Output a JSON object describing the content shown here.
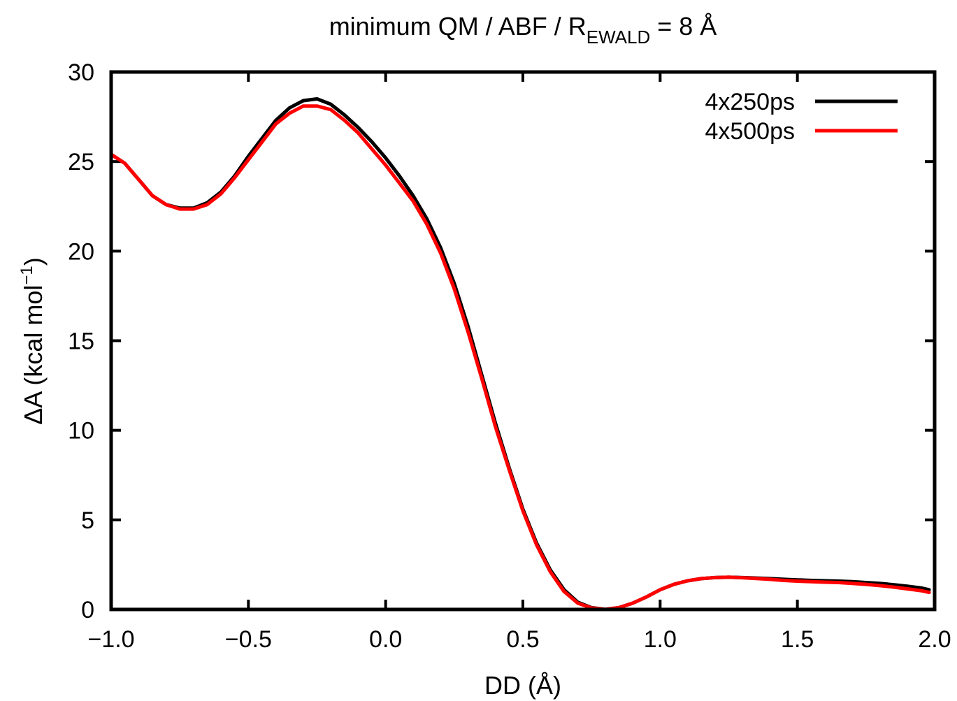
{
  "chart_data": {
    "type": "line",
    "title": {
      "prefix": "minimum QM / ABF / R",
      "subscript": "EWALD",
      "suffix": " = 8 Å"
    },
    "xlabel": "DD (Å)",
    "ylabel": {
      "main": "ΔA (kcal mol",
      "superscript": "−1",
      "close": ")"
    },
    "xlim": [
      -1.0,
      2.0
    ],
    "ylim": [
      0,
      30
    ],
    "xticks": [
      {
        "value": -1.0,
        "label": "−1.0"
      },
      {
        "value": -0.5,
        "label": "−0.5"
      },
      {
        "value": 0.0,
        "label": "0.0"
      },
      {
        "value": 0.5,
        "label": "0.5"
      },
      {
        "value": 1.0,
        "label": "1.0"
      },
      {
        "value": 1.5,
        "label": "1.5"
      },
      {
        "value": 2.0,
        "label": "2.0"
      }
    ],
    "yticks": [
      {
        "value": 0,
        "label": "0"
      },
      {
        "value": 5,
        "label": "5"
      },
      {
        "value": 10,
        "label": "10"
      },
      {
        "value": 15,
        "label": "15"
      },
      {
        "value": 20,
        "label": "20"
      },
      {
        "value": 25,
        "label": "25"
      },
      {
        "value": 30,
        "label": "30"
      }
    ],
    "grid": false,
    "legend_position": "top-right",
    "series": [
      {
        "name": "4x250ps",
        "color": "#000000",
        "points": [
          [
            -1.0,
            25.4
          ],
          [
            -0.95,
            24.9
          ],
          [
            -0.9,
            24.0
          ],
          [
            -0.85,
            23.1
          ],
          [
            -0.8,
            22.6
          ],
          [
            -0.75,
            22.4
          ],
          [
            -0.7,
            22.4
          ],
          [
            -0.65,
            22.7
          ],
          [
            -0.6,
            23.3
          ],
          [
            -0.55,
            24.2
          ],
          [
            -0.5,
            25.3
          ],
          [
            -0.45,
            26.3
          ],
          [
            -0.4,
            27.3
          ],
          [
            -0.35,
            28.0
          ],
          [
            -0.3,
            28.4
          ],
          [
            -0.25,
            28.5
          ],
          [
            -0.2,
            28.2
          ],
          [
            -0.15,
            27.6
          ],
          [
            -0.1,
            26.9
          ],
          [
            -0.05,
            26.1
          ],
          [
            0.0,
            25.2
          ],
          [
            0.05,
            24.2
          ],
          [
            0.1,
            23.1
          ],
          [
            0.15,
            21.8
          ],
          [
            0.2,
            20.2
          ],
          [
            0.25,
            18.2
          ],
          [
            0.3,
            15.8
          ],
          [
            0.35,
            13.1
          ],
          [
            0.4,
            10.4
          ],
          [
            0.45,
            7.9
          ],
          [
            0.5,
            5.6
          ],
          [
            0.55,
            3.7
          ],
          [
            0.6,
            2.2
          ],
          [
            0.65,
            1.1
          ],
          [
            0.7,
            0.4
          ],
          [
            0.75,
            0.1
          ],
          [
            0.8,
            0.0
          ],
          [
            0.85,
            0.1
          ],
          [
            0.9,
            0.35
          ],
          [
            0.95,
            0.7
          ],
          [
            1.0,
            1.1
          ],
          [
            1.05,
            1.4
          ],
          [
            1.1,
            1.6
          ],
          [
            1.15,
            1.72
          ],
          [
            1.2,
            1.78
          ],
          [
            1.25,
            1.8
          ],
          [
            1.3,
            1.78
          ],
          [
            1.35,
            1.75
          ],
          [
            1.4,
            1.72
          ],
          [
            1.45,
            1.68
          ],
          [
            1.5,
            1.65
          ],
          [
            1.55,
            1.62
          ],
          [
            1.6,
            1.6
          ],
          [
            1.65,
            1.58
          ],
          [
            1.7,
            1.55
          ],
          [
            1.75,
            1.5
          ],
          [
            1.8,
            1.45
          ],
          [
            1.85,
            1.38
          ],
          [
            1.9,
            1.3
          ],
          [
            1.95,
            1.2
          ],
          [
            1.98,
            1.1
          ]
        ]
      },
      {
        "name": "4x500ps",
        "color": "#ff0000",
        "points": [
          [
            -1.0,
            25.4
          ],
          [
            -0.95,
            24.9
          ],
          [
            -0.9,
            24.0
          ],
          [
            -0.85,
            23.1
          ],
          [
            -0.8,
            22.6
          ],
          [
            -0.75,
            22.35
          ],
          [
            -0.7,
            22.35
          ],
          [
            -0.65,
            22.6
          ],
          [
            -0.6,
            23.2
          ],
          [
            -0.55,
            24.1
          ],
          [
            -0.5,
            25.1
          ],
          [
            -0.45,
            26.1
          ],
          [
            -0.4,
            27.1
          ],
          [
            -0.35,
            27.7
          ],
          [
            -0.3,
            28.1
          ],
          [
            -0.25,
            28.1
          ],
          [
            -0.2,
            27.9
          ],
          [
            -0.15,
            27.3
          ],
          [
            -0.1,
            26.6
          ],
          [
            -0.05,
            25.7
          ],
          [
            0.0,
            24.8
          ],
          [
            0.05,
            23.8
          ],
          [
            0.1,
            22.8
          ],
          [
            0.15,
            21.5
          ],
          [
            0.2,
            19.9
          ],
          [
            0.25,
            17.9
          ],
          [
            0.3,
            15.5
          ],
          [
            0.35,
            12.9
          ],
          [
            0.4,
            10.2
          ],
          [
            0.45,
            7.8
          ],
          [
            0.5,
            5.5
          ],
          [
            0.55,
            3.6
          ],
          [
            0.6,
            2.1
          ],
          [
            0.65,
            1.0
          ],
          [
            0.7,
            0.35
          ],
          [
            0.75,
            0.08
          ],
          [
            0.8,
            0.0
          ],
          [
            0.85,
            0.1
          ],
          [
            0.9,
            0.35
          ],
          [
            0.95,
            0.7
          ],
          [
            1.0,
            1.1
          ],
          [
            1.05,
            1.4
          ],
          [
            1.1,
            1.6
          ],
          [
            1.15,
            1.72
          ],
          [
            1.2,
            1.78
          ],
          [
            1.25,
            1.8
          ],
          [
            1.3,
            1.77
          ],
          [
            1.35,
            1.73
          ],
          [
            1.4,
            1.68
          ],
          [
            1.45,
            1.62
          ],
          [
            1.5,
            1.58
          ],
          [
            1.55,
            1.55
          ],
          [
            1.6,
            1.52
          ],
          [
            1.65,
            1.5
          ],
          [
            1.7,
            1.45
          ],
          [
            1.75,
            1.4
          ],
          [
            1.8,
            1.33
          ],
          [
            1.85,
            1.25
          ],
          [
            1.9,
            1.15
          ],
          [
            1.95,
            1.05
          ],
          [
            1.98,
            0.95
          ]
        ]
      }
    ]
  }
}
